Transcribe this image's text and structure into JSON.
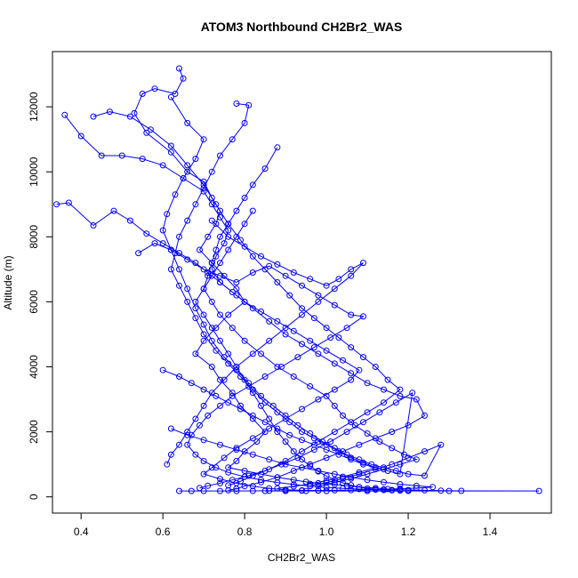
{
  "chart_data": {
    "type": "line",
    "markers": "open-circle",
    "title": "ATOM3 Northbound CH2Br2_WAS",
    "xlabel": "CH2Br2_WAS",
    "ylabel": "Altitude (m)",
    "xlim": [
      0.33,
      1.55
    ],
    "ylim": [
      -500,
      13700
    ],
    "xticks": [
      0.4,
      0.6,
      0.8,
      1.0,
      1.2,
      1.4
    ],
    "xtick_labels": [
      "0.4",
      "0.6",
      "0.8",
      "1.0",
      "1.2",
      "1.4"
    ],
    "yticks": [
      0,
      2000,
      4000,
      6000,
      8000,
      10000,
      12000
    ],
    "ytick_labels": [
      "0",
      "2000",
      "4000",
      "6000",
      "8000",
      "10000",
      "12000"
    ],
    "grid": false,
    "series_color": "#0000ff",
    "series": [
      {
        "x": [
          0.64,
          0.65,
          0.63,
          0.58,
          0.55,
          0.53,
          0.56,
          0.62,
          0.66,
          0.7,
          0.72,
          0.74,
          0.73,
          0.71,
          0.69,
          0.72,
          0.75,
          0.78,
          0.8,
          0.76,
          0.73,
          0.7,
          0.68,
          0.72,
          0.74,
          0.77,
          0.79,
          0.82,
          0.85,
          0.83,
          0.8,
          0.78,
          0.76,
          0.8,
          0.84,
          0.88,
          0.92,
          0.95,
          0.98,
          1.02,
          1.05,
          1.08,
          1.12,
          1.15,
          1.18,
          1.2,
          1.24,
          1.28,
          1.33,
          1.52,
          1.3,
          1.2,
          1.1,
          1.0,
          0.95,
          0.9,
          0.85
        ],
        "y": [
          13180,
          12870,
          12400,
          12560,
          12400,
          11800,
          11200,
          10600,
          10000,
          9700,
          9200,
          8800,
          8400,
          8000,
          7600,
          7200,
          6800,
          6400,
          6000,
          5600,
          5200,
          4800,
          4400,
          4000,
          3600,
          3200,
          2800,
          2400,
          2000,
          1700,
          1400,
          1100,
          900,
          800,
          700,
          600,
          520,
          460,
          420,
          380,
          340,
          300,
          270,
          240,
          220,
          210,
          200,
          190,
          185,
          180,
          180,
          180,
          180,
          180,
          180,
          180,
          180
        ]
      },
      {
        "x": [
          0.36,
          0.4,
          0.45,
          0.5,
          0.55,
          0.6,
          0.65,
          0.7,
          0.72,
          0.74,
          0.76,
          0.75,
          0.73,
          0.72,
          0.74,
          0.78,
          0.82,
          0.86,
          0.9,
          0.94,
          0.98,
          1.02,
          1.06,
          1.1,
          1.14,
          1.18,
          1.22,
          1.24,
          1.2,
          1.16,
          1.12,
          1.08,
          1.04,
          1.0,
          0.96,
          0.92,
          0.88,
          0.84,
          0.8,
          0.78,
          0.76
        ],
        "y": [
          11750,
          11100,
          10500,
          10500,
          10400,
          10200,
          9800,
          9400,
          9000,
          8600,
          8200,
          7800,
          7400,
          7000,
          6600,
          6200,
          5800,
          5400,
          5000,
          4700,
          4400,
          4100,
          3800,
          3500,
          3300,
          3100,
          3000,
          2500,
          2200,
          2000,
          1800,
          1600,
          1400,
          1200,
          1000,
          800,
          600,
          450,
          330,
          250,
          200
        ]
      },
      {
        "x": [
          0.34,
          0.37,
          0.43,
          0.48,
          0.52,
          0.56,
          0.6,
          0.64,
          0.68,
          0.71,
          0.74,
          0.77,
          0.8,
          0.84,
          0.88,
          0.92,
          0.96,
          1.0,
          1.04,
          1.08,
          1.06,
          1.02,
          0.98,
          0.94,
          0.9,
          0.86,
          0.82,
          0.78,
          0.75,
          0.72,
          0.7,
          0.74,
          0.78,
          0.82,
          0.86,
          0.9,
          0.94,
          0.98
        ],
        "y": [
          9000,
          9050,
          8350,
          8800,
          8500,
          8100,
          7800,
          7500,
          7200,
          6900,
          6600,
          6300,
          6000,
          5700,
          5400,
          5100,
          4800,
          4500,
          4200,
          3900,
          3600,
          3300,
          3000,
          2700,
          2400,
          2100,
          1800,
          1500,
          1200,
          900,
          700,
          550,
          420,
          330,
          260,
          220,
          200,
          190
        ]
      },
      {
        "x": [
          0.43,
          0.47,
          0.52,
          0.57,
          0.62,
          0.66,
          0.7,
          0.73,
          0.76,
          0.79,
          0.82,
          0.85,
          0.88,
          0.91,
          0.94,
          0.97,
          1.0,
          1.03,
          1.06,
          1.09,
          1.12,
          1.15,
          1.18,
          1.14,
          1.1,
          1.06,
          1.02,
          0.98,
          0.94,
          0.9,
          0.86,
          0.82,
          0.79,
          0.76
        ],
        "y": [
          11700,
          11850,
          11700,
          11300,
          10800,
          10200,
          9600,
          9000,
          8400,
          7900,
          7400,
          7000,
          6600,
          6200,
          5800,
          5500,
          5200,
          4900,
          4600,
          4300,
          4000,
          3600,
          3300,
          2900,
          2600,
          2300,
          2000,
          1700,
          1400,
          1100,
          850,
          650,
          480,
          350
        ]
      },
      {
        "x": [
          0.62,
          0.66,
          0.7,
          0.68,
          0.65,
          0.63,
          0.61,
          0.6,
          0.62,
          0.64,
          0.66,
          0.68,
          0.7,
          0.72,
          0.75,
          0.78,
          0.81,
          0.84,
          0.87,
          0.9,
          0.93,
          0.96,
          0.99,
          1.02,
          1.05,
          1.08,
          1.11,
          1.14,
          1.17,
          1.2,
          1.24,
          1.28,
          1.24,
          1.2,
          1.16,
          1.12,
          1.08,
          1.04,
          1.0,
          0.96
        ],
        "y": [
          12300,
          11500,
          11000,
          10400,
          9800,
          9300,
          8700,
          8200,
          7600,
          7000,
          6400,
          5800,
          5300,
          4800,
          4300,
          3900,
          3500,
          3100,
          2800,
          2500,
          2200,
          1950,
          1700,
          1500,
          1300,
          1150,
          1000,
          900,
          800,
          700,
          650,
          1600,
          1400,
          1200,
          1000,
          850,
          700,
          560,
          440,
          340
        ]
      },
      {
        "x": [
          0.78,
          0.81,
          0.8,
          0.77,
          0.74,
          0.72,
          0.7,
          0.68,
          0.66,
          0.64,
          0.63,
          0.62,
          0.64,
          0.66,
          0.68,
          0.7,
          0.73,
          0.76,
          0.79,
          0.82,
          0.85,
          0.88,
          0.91,
          0.94,
          0.97,
          1.0,
          1.03,
          1.06,
          1.09,
          1.12,
          1.08,
          1.04,
          1.0,
          0.96,
          0.92,
          0.88
        ],
        "y": [
          12100,
          12050,
          11500,
          11000,
          10500,
          10000,
          9500,
          9000,
          8500,
          8000,
          7500,
          7000,
          6500,
          6000,
          5500,
          5000,
          4500,
          4100,
          3700,
          3300,
          2900,
          2600,
          2300,
          2000,
          1800,
          1600,
          1400,
          1200,
          1050,
          900,
          750,
          620,
          500,
          400,
          320,
          260
        ]
      },
      {
        "x": [
          0.88,
          0.85,
          0.82,
          0.8,
          0.78,
          0.76,
          0.74,
          0.73,
          0.72,
          0.71,
          0.7,
          0.72,
          0.74,
          0.77,
          0.8,
          0.84,
          0.88,
          0.92,
          0.96,
          1.0,
          1.02,
          1.04,
          1.07,
          1.1,
          1.13,
          1.16,
          1.19,
          1.22,
          1.18,
          1.14,
          1.1,
          1.06,
          1.02,
          0.98
        ],
        "y": [
          10750,
          10100,
          9600,
          9200,
          8800,
          8400,
          8000,
          7600,
          7200,
          6800,
          6400,
          6000,
          5600,
          5200,
          4800,
          4400,
          4000,
          3700,
          3400,
          3100,
          2800,
          2500,
          2200,
          1950,
          1700,
          1500,
          1300,
          1150,
          1000,
          850,
          700,
          560,
          440,
          330
        ]
      },
      {
        "x": [
          0.54,
          0.58,
          0.62,
          0.66,
          0.7,
          0.74,
          0.78,
          0.82,
          0.86,
          0.9,
          0.94,
          0.98,
          1.02,
          1.06,
          1.09,
          1.05,
          1.01,
          0.97,
          0.93,
          0.89,
          0.85,
          0.81,
          0.77,
          0.74,
          0.71,
          0.69,
          0.67,
          0.66,
          0.68,
          0.7,
          0.73,
          0.76,
          0.8,
          0.84,
          0.88,
          0.92,
          0.96,
          1.0,
          1.04,
          1.08,
          1.12,
          1.16
        ],
        "y": [
          7500,
          7800,
          7600,
          7300,
          7000,
          6800,
          6600,
          6900,
          7100,
          6800,
          6500,
          6200,
          5900,
          5600,
          5550,
          5200,
          4900,
          4600,
          4300,
          4000,
          3700,
          3400,
          3100,
          2800,
          2500,
          2200,
          1900,
          1600,
          1300,
          1100,
          900,
          750,
          620,
          520,
          440,
          380,
          330,
          290,
          260,
          240,
          220,
          210
        ]
      },
      {
        "x": [
          0.6,
          0.64,
          0.67,
          0.7,
          0.73,
          0.76,
          0.79,
          0.82,
          0.85,
          0.88,
          0.91,
          0.94,
          0.97,
          1.0,
          1.03,
          1.06,
          1.09,
          1.12,
          1.15,
          1.18,
          1.21,
          1.17,
          1.13,
          1.09,
          1.05,
          1.01,
          0.97,
          0.93,
          0.89,
          0.85,
          0.81,
          0.77,
          0.74,
          0.71,
          0.69
        ],
        "y": [
          3900,
          3700,
          3500,
          3300,
          3100,
          2900,
          2700,
          2500,
          2300,
          2100,
          1900,
          1750,
          1600,
          1450,
          1300,
          1150,
          1000,
          900,
          800,
          700,
          3200,
          2900,
          2600,
          2300,
          2000,
          1700,
          1450,
          1200,
          1000,
          800,
          650,
          520,
          420,
          340,
          270
        ]
      },
      {
        "x": [
          0.62,
          0.66,
          0.7,
          0.74,
          0.78,
          0.82,
          0.86,
          0.9,
          0.94,
          0.98,
          1.02,
          1.06,
          1.1,
          1.14,
          1.18,
          1.22,
          1.26,
          1.22,
          1.18,
          1.14,
          1.1,
          1.06,
          1.02,
          0.98,
          0.94,
          0.9,
          0.86,
          0.82,
          0.78,
          0.74,
          0.7,
          0.67,
          0.64
        ],
        "y": [
          2100,
          1900,
          1750,
          1600,
          1450,
          1300,
          1150,
          1000,
          900,
          800,
          700,
          600,
          520,
          450,
          390,
          340,
          300,
          270,
          250,
          230,
          215,
          205,
          200,
          195,
          190,
          188,
          186,
          184,
          182,
          180,
          180,
          180,
          180
        ]
      },
      {
        "x": [
          0.72,
          0.76,
          0.8,
          0.84,
          0.88,
          0.92,
          0.96,
          1.0,
          1.03,
          1.06,
          1.09,
          1.06,
          1.02,
          0.98,
          0.94,
          0.9,
          0.86,
          0.82,
          0.78,
          0.75,
          0.72,
          0.7,
          0.68,
          0.66,
          0.64,
          0.62,
          0.61
        ],
        "y": [
          8500,
          8000,
          7700,
          7400,
          7150,
          6900,
          6700,
          6500,
          6700,
          7000,
          7200,
          6800,
          6400,
          6000,
          5600,
          5200,
          4800,
          4400,
          4000,
          3600,
          3200,
          2800,
          2400,
          2000,
          1600,
          1300,
          1000
        ]
      },
      {
        "x": [
          0.82,
          0.8,
          0.78,
          0.76,
          0.74,
          0.72,
          0.7,
          0.68,
          0.7,
          0.72,
          0.74,
          0.76,
          0.78,
          0.8,
          0.82,
          0.84,
          0.86,
          0.88,
          0.9,
          0.92,
          0.94,
          0.96,
          0.98,
          1.0,
          1.02,
          1.04,
          1.06,
          1.08,
          1.1,
          1.12,
          1.14,
          1.16,
          1.18
        ],
        "y": [
          8800,
          8400,
          8000,
          7600,
          7200,
          6800,
          6400,
          6000,
          5600,
          5200,
          4800,
          4400,
          4000,
          3600,
          3200,
          2800,
          2400,
          2000,
          1700,
          1400,
          1150,
          950,
          780,
          640,
          520,
          430,
          360,
          300,
          260,
          230,
          210,
          200,
          190
        ]
      }
    ]
  }
}
